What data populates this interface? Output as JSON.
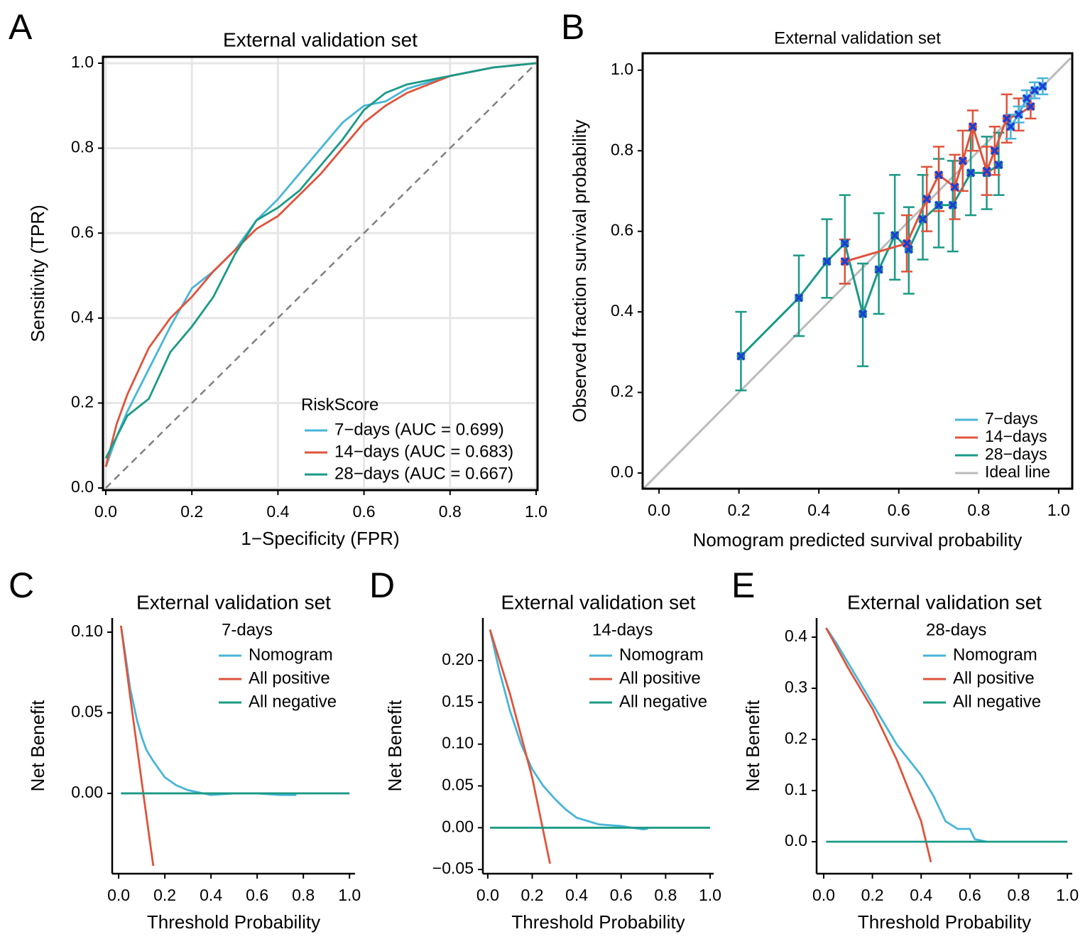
{
  "chart_data": [
    {
      "type": "line",
      "panel": "A",
      "title": "External validation set",
      "xlabel": "1−Specificity (FPR)",
      "ylabel": "Sensitivity (TPR)",
      "legend_title": "RiskScore",
      "legend": "bottom-right",
      "grid": true,
      "frame": "box",
      "diagonal": true,
      "x": [
        0,
        0.025,
        0.05,
        0.1,
        0.15,
        0.2,
        0.25,
        0.3,
        0.35,
        0.4,
        0.45,
        0.5,
        0.55,
        0.6,
        0.65,
        0.7,
        0.8,
        0.9,
        1.0
      ],
      "series": [
        {
          "name": "7−days (AUC = 0.699)",
          "color": "#48b5d8",
          "values": [
            0.05,
            0.12,
            0.18,
            0.28,
            0.38,
            0.47,
            0.51,
            0.56,
            0.63,
            0.68,
            0.74,
            0.8,
            0.86,
            0.9,
            0.91,
            0.94,
            0.97,
            0.99,
            1.0
          ]
        },
        {
          "name": "14−days (AUC = 0.683)",
          "color": "#e0533b",
          "values": [
            0.05,
            0.15,
            0.22,
            0.33,
            0.4,
            0.45,
            0.51,
            0.56,
            0.61,
            0.64,
            0.69,
            0.74,
            0.8,
            0.86,
            0.9,
            0.93,
            0.97,
            0.99,
            1.0
          ]
        },
        {
          "name": "28−days (AUC = 0.667)",
          "color": "#1a9a86",
          "values": [
            0.07,
            0.12,
            0.17,
            0.21,
            0.32,
            0.38,
            0.45,
            0.55,
            0.63,
            0.66,
            0.7,
            0.76,
            0.82,
            0.89,
            0.93,
            0.95,
            0.97,
            0.99,
            1.0
          ]
        }
      ],
      "xlim": [
        -0.0066,
        1.0033
      ],
      "ylim": [
        -0.005,
        1.015
      ],
      "xticks": [
        {
          "value": 0,
          "label": "0.0"
        },
        0.2,
        0.4,
        0.6,
        0.8,
        {
          "value": 1,
          "label": "1.0"
        }
      ],
      "yticks": [
        {
          "value": 0,
          "label": "0.0"
        },
        0.2,
        0.4,
        0.6,
        0.8,
        {
          "value": 1,
          "label": "1.0"
        }
      ]
    },
    {
      "type": "calibration",
      "panel": "B",
      "title": "External validation set",
      "xlabel": "Nomogram predicted survival probability",
      "ylabel": "Observed fraction survival probability",
      "legend": "bottom-right",
      "grid": false,
      "frame": "box",
      "marker_color": "#1c3fd6",
      "series": [
        {
          "name": "7−days",
          "color": "#48b5d8",
          "x": [
            0.88,
            0.9,
            0.92,
            0.94,
            0.96
          ],
          "values": [
            0.86,
            0.89,
            0.93,
            0.95,
            0.96
          ],
          "lower": [
            0.83,
            0.87,
            0.91,
            0.93,
            0.94
          ],
          "upper": [
            0.89,
            0.91,
            0.95,
            0.97,
            0.98
          ]
        },
        {
          "name": "14−days",
          "color": "#e0533b",
          "x": [
            0.465,
            0.62,
            0.67,
            0.7,
            0.74,
            0.76,
            0.785,
            0.82,
            0.84,
            0.87,
            0.9,
            0.93
          ],
          "values": [
            0.525,
            0.57,
            0.68,
            0.74,
            0.71,
            0.775,
            0.86,
            0.75,
            0.8,
            0.88,
            0.89,
            0.91
          ],
          "lower": [
            0.47,
            0.5,
            0.6,
            0.65,
            0.63,
            0.7,
            0.8,
            0.69,
            0.74,
            0.82,
            0.85,
            0.88
          ],
          "upper": [
            0.58,
            0.64,
            0.76,
            0.81,
            0.79,
            0.85,
            0.9,
            0.81,
            0.86,
            0.94,
            0.93,
            0.95
          ]
        },
        {
          "name": "28−days",
          "color": "#1a9a86",
          "x": [
            0.205,
            0.35,
            0.42,
            0.465,
            0.51,
            0.55,
            0.59,
            0.625,
            0.66,
            0.7,
            0.735,
            0.78,
            0.82,
            0.85
          ],
          "values": [
            0.29,
            0.435,
            0.525,
            0.57,
            0.395,
            0.505,
            0.59,
            0.555,
            0.63,
            0.665,
            0.665,
            0.745,
            0.745,
            0.765
          ],
          "lower": [
            0.205,
            0.34,
            0.435,
            0.47,
            0.265,
            0.395,
            0.48,
            0.445,
            0.53,
            0.56,
            0.55,
            0.64,
            0.655,
            0.69
          ],
          "upper": [
            0.4,
            0.54,
            0.63,
            0.69,
            0.52,
            0.645,
            0.74,
            0.66,
            0.74,
            0.78,
            0.775,
            0.85,
            0.835,
            0.845
          ]
        },
        {
          "name": "Ideal line",
          "color": "#bbbbbb",
          "x": [
            -0.04,
            1.03
          ],
          "values": [
            -0.04,
            1.03
          ]
        }
      ],
      "xlim": [
        -0.041,
        1.034
      ],
      "ylim": [
        -0.039,
        1.042
      ],
      "xticks": [
        {
          "value": 0,
          "label": "0.0"
        },
        0.2,
        0.4,
        0.6,
        0.8,
        {
          "value": 1,
          "label": "1.0"
        }
      ],
      "yticks": [
        {
          "value": 0,
          "label": "0.0"
        },
        0.2,
        0.4,
        0.6,
        0.8,
        {
          "value": 1,
          "label": "1.0"
        }
      ]
    },
    {
      "type": "line",
      "panel": "C",
      "title": "External validation set",
      "xlabel": "Threshold Probability",
      "ylabel": "Net Benefit",
      "legend_title": "7-days",
      "legend": "top-right",
      "grid": false,
      "frame": "axes",
      "series": [
        {
          "name": "Nomogram",
          "color": "#48b5d8",
          "x": [
            0.01,
            0.03,
            0.05,
            0.08,
            0.1,
            0.12,
            0.15,
            0.2,
            0.25,
            0.3,
            0.4,
            0.5,
            0.6,
            0.7,
            0.77
          ],
          "values": [
            0.104,
            0.085,
            0.065,
            0.045,
            0.035,
            0.027,
            0.02,
            0.01,
            0.005,
            0.002,
            -0.001,
            0,
            0,
            -0.001,
            -0.001
          ]
        },
        {
          "name": "All positive",
          "color": "#e0533b",
          "x": [
            0.01,
            0.05,
            0.1,
            0.15
          ],
          "values": [
            0.104,
            0.06,
            0.007,
            -0.045
          ]
        },
        {
          "name": "All negative",
          "color": "#1a9a86",
          "x": [
            0.01,
            1.0
          ],
          "values": [
            0,
            0
          ]
        }
      ],
      "xlim": [
        -0.028,
        1.024
      ],
      "ylim": [
        -0.0498,
        0.1088
      ],
      "xticks": [
        {
          "value": 0,
          "label": "0.0"
        },
        0.2,
        0.4,
        0.6,
        0.8,
        {
          "value": 1,
          "label": "1.0"
        }
      ],
      "yticks": [
        {
          "value": 0,
          "label": "0.00"
        },
        0.05,
        {
          "value": 0.1,
          "label": "0.10"
        }
      ]
    },
    {
      "type": "line",
      "panel": "D",
      "title": "External validation set",
      "xlabel": "Threshold Probability",
      "ylabel": "Net Benefit",
      "legend_title": "14-days",
      "legend": "top-right",
      "grid": false,
      "frame": "axes",
      "series": [
        {
          "name": "Nomogram",
          "color": "#48b5d8",
          "x": [
            0.01,
            0.05,
            0.1,
            0.15,
            0.2,
            0.25,
            0.3,
            0.35,
            0.4,
            0.5,
            0.6,
            0.7,
            0.72
          ],
          "values": [
            0.237,
            0.19,
            0.14,
            0.1,
            0.07,
            0.05,
            0.035,
            0.022,
            0.012,
            0.004,
            0.002,
            -0.002,
            -0.001
          ]
        },
        {
          "name": "All positive",
          "color": "#e0533b",
          "x": [
            0.01,
            0.1,
            0.2,
            0.28
          ],
          "values": [
            0.237,
            0.16,
            0.06,
            -0.043
          ]
        },
        {
          "name": "All negative",
          "color": "#1a9a86",
          "x": [
            0.01,
            1.0
          ],
          "values": [
            0,
            0
          ]
        }
      ],
      "xlim": [
        -0.022,
        1.016
      ],
      "ylim": [
        -0.055,
        0.251
      ],
      "xticks": [
        {
          "value": 0,
          "label": "0.0"
        },
        0.2,
        0.4,
        0.6,
        0.8,
        {
          "value": 1,
          "label": "1.0"
        }
      ],
      "yticks": [
        {
          "value": -0.05,
          "label": "−0.05"
        },
        {
          "value": 0,
          "label": "0.00"
        },
        0.05,
        {
          "value": 0.1,
          "label": "0.10"
        },
        0.15,
        {
          "value": 0.2,
          "label": "0.20"
        }
      ]
    },
    {
      "type": "line",
      "panel": "E",
      "title": "External validation set",
      "xlabel": "Threshold Probability",
      "ylabel": "Net Benefit",
      "legend_title": "28-days",
      "legend": "top-right",
      "grid": false,
      "frame": "axes",
      "series": [
        {
          "name": "Nomogram",
          "color": "#48b5d8",
          "x": [
            0.01,
            0.05,
            0.1,
            0.15,
            0.2,
            0.25,
            0.3,
            0.35,
            0.4,
            0.45,
            0.5,
            0.55,
            0.6,
            0.62,
            0.65,
            0.67
          ],
          "values": [
            0.418,
            0.39,
            0.35,
            0.31,
            0.27,
            0.23,
            0.19,
            0.16,
            0.13,
            0.09,
            0.04,
            0.025,
            0.025,
            0.005,
            0.002,
            0
          ]
        },
        {
          "name": "All positive",
          "color": "#e0533b",
          "x": [
            0.01,
            0.1,
            0.2,
            0.3,
            0.4,
            0.44
          ],
          "values": [
            0.418,
            0.34,
            0.26,
            0.16,
            0.04,
            -0.04
          ]
        },
        {
          "name": "All negative",
          "color": "#1a9a86",
          "x": [
            0.01,
            1.0
          ],
          "values": [
            0,
            0
          ]
        }
      ],
      "xlim": [
        -0.029,
        1.02
      ],
      "ylim": [
        -0.0625,
        0.4375
      ],
      "xticks": [
        {
          "value": 0,
          "label": "0.0"
        },
        0.2,
        0.4,
        0.6,
        0.8,
        {
          "value": 1,
          "label": "1.0"
        }
      ],
      "yticks": [
        {
          "value": 0,
          "label": "0.0"
        },
        0.1,
        0.2,
        0.3,
        0.4
      ]
    }
  ]
}
